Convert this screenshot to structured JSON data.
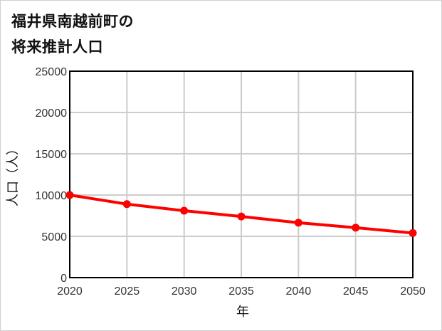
{
  "title": {
    "line1": "福井県南越前町の",
    "line2": "将来推計人口"
  },
  "colors": {
    "series": "#ff0000",
    "grid": "#cccccc",
    "axis": "#000000"
  },
  "chart_data": {
    "type": "line",
    "title": "福井県南越前町の将来推計人口",
    "xlabel": "年",
    "ylabel": "人口（人）",
    "x": [
      2020,
      2025,
      2030,
      2035,
      2040,
      2045,
      2050
    ],
    "series": [
      {
        "name": "人口",
        "values": [
          10000,
          8900,
          8100,
          7400,
          6650,
          6050,
          5400
        ]
      }
    ],
    "xlim": [
      2020,
      2050
    ],
    "ylim": [
      0,
      25000
    ],
    "yticks": [
      0,
      5000,
      10000,
      15000,
      20000,
      25000
    ],
    "xticks": [
      2020,
      2025,
      2030,
      2035,
      2040,
      2045,
      2050
    ],
    "grid": true,
    "legend": "none"
  }
}
